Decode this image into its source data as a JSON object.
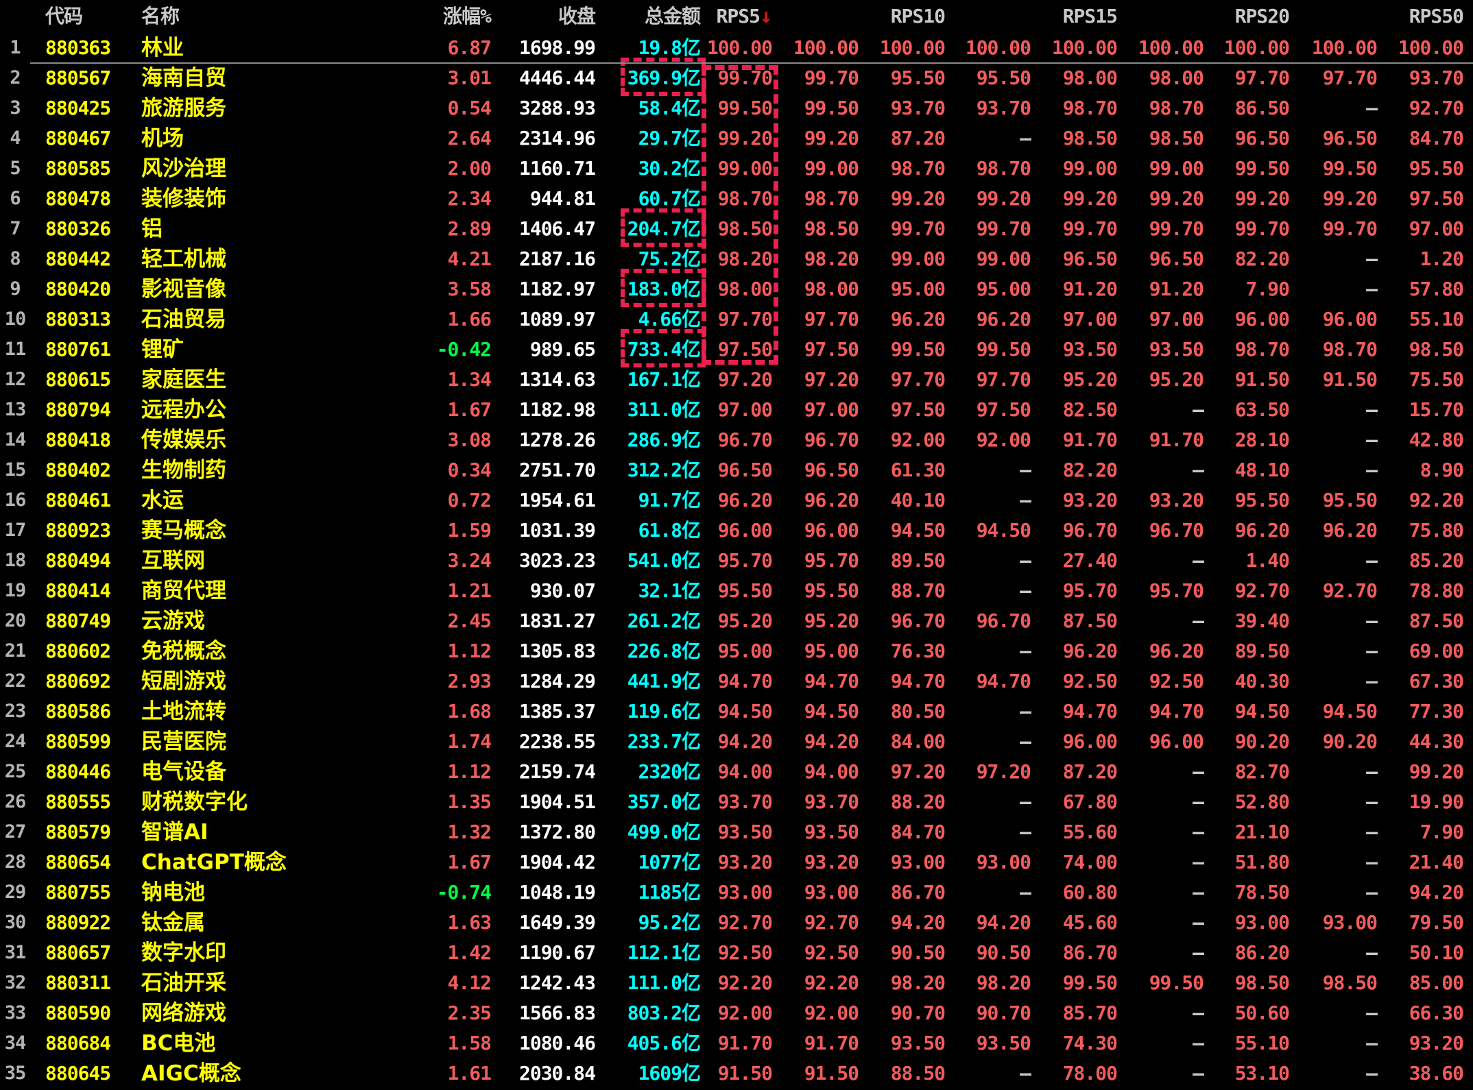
{
  "table": {
    "columns": {
      "rownum": "",
      "code": "代码",
      "name": "名称",
      "change_pct": "涨幅%",
      "close": "收盘",
      "amount": "总金额",
      "rps5": "RPS5",
      "rps10": "RPS10",
      "rps15": "RPS15",
      "rps20": "RPS20",
      "rps50": "RPS50"
    },
    "sort": {
      "column": "RPS5",
      "direction": "desc",
      "arrow": "↓"
    },
    "colors": {
      "up": "#f35c5c",
      "down": "#00ff40",
      "code_name": "#ffff00",
      "close": "#ffffff",
      "amount": "#00ffff",
      "header": "#c8c8c8",
      "highlight_box": "#ec2050",
      "background": "#000000"
    },
    "annotations": {
      "amount_boxed_rows": [
        2,
        7,
        9,
        11
      ],
      "rps5_column_box_rows": "2-11"
    },
    "rows": [
      {
        "no": 1,
        "code": "880363",
        "name": "林业",
        "chg": "6.87",
        "close": "1698.99",
        "amt": "19.8亿",
        "boxed": false,
        "rps": [
          "100.00",
          "100.00",
          "100.00",
          "100.00",
          "100.00",
          "100.00",
          "100.00",
          "100.00",
          "100.00"
        ]
      },
      {
        "no": 2,
        "code": "880567",
        "name": "海南自贸",
        "chg": "3.01",
        "close": "4446.44",
        "amt": "369.9亿",
        "boxed": true,
        "rps": [
          "99.70",
          "99.70",
          "95.50",
          "95.50",
          "98.00",
          "98.00",
          "97.70",
          "97.70",
          "93.70"
        ]
      },
      {
        "no": 3,
        "code": "880425",
        "name": "旅游服务",
        "chg": "0.54",
        "close": "3288.93",
        "amt": "58.4亿",
        "boxed": false,
        "rps": [
          "99.50",
          "99.50",
          "93.70",
          "93.70",
          "98.70",
          "98.70",
          "86.50",
          "–",
          "92.70"
        ]
      },
      {
        "no": 4,
        "code": "880467",
        "name": "机场",
        "chg": "2.64",
        "close": "2314.96",
        "amt": "29.7亿",
        "boxed": false,
        "rps": [
          "99.20",
          "99.20",
          "87.20",
          "–",
          "98.50",
          "98.50",
          "96.50",
          "96.50",
          "84.70"
        ]
      },
      {
        "no": 5,
        "code": "880585",
        "name": "风沙治理",
        "chg": "2.00",
        "close": "1160.71",
        "amt": "30.2亿",
        "boxed": false,
        "rps": [
          "99.00",
          "99.00",
          "98.70",
          "98.70",
          "99.00",
          "99.00",
          "99.50",
          "99.50",
          "95.50"
        ]
      },
      {
        "no": 6,
        "code": "880478",
        "name": "装修装饰",
        "chg": "2.34",
        "close": "944.81",
        "amt": "60.7亿",
        "boxed": false,
        "rps": [
          "98.70",
          "98.70",
          "99.20",
          "99.20",
          "99.20",
          "99.20",
          "99.20",
          "99.20",
          "97.50"
        ]
      },
      {
        "no": 7,
        "code": "880326",
        "name": "铝",
        "chg": "2.89",
        "close": "1406.47",
        "amt": "204.7亿",
        "boxed": true,
        "rps": [
          "98.50",
          "98.50",
          "99.70",
          "99.70",
          "99.70",
          "99.70",
          "99.70",
          "99.70",
          "97.00"
        ]
      },
      {
        "no": 8,
        "code": "880442",
        "name": "轻工机械",
        "chg": "4.21",
        "close": "2187.16",
        "amt": "75.2亿",
        "boxed": false,
        "rps": [
          "98.20",
          "98.20",
          "99.00",
          "99.00",
          "96.50",
          "96.50",
          "82.20",
          "–",
          "1.20"
        ]
      },
      {
        "no": 9,
        "code": "880420",
        "name": "影视音像",
        "chg": "3.58",
        "close": "1182.97",
        "amt": "183.0亿",
        "boxed": true,
        "rps": [
          "98.00",
          "98.00",
          "95.00",
          "95.00",
          "91.20",
          "91.20",
          "7.90",
          "–",
          "57.80"
        ]
      },
      {
        "no": 10,
        "code": "880313",
        "name": "石油贸易",
        "chg": "1.66",
        "close": "1089.97",
        "amt": "4.66亿",
        "boxed": false,
        "rps": [
          "97.70",
          "97.70",
          "96.20",
          "96.20",
          "97.00",
          "97.00",
          "96.00",
          "96.00",
          "55.10"
        ]
      },
      {
        "no": 11,
        "code": "880761",
        "name": "锂矿",
        "chg": "-0.42",
        "close": "989.65",
        "amt": "733.4亿",
        "boxed": true,
        "rps": [
          "97.50",
          "97.50",
          "99.50",
          "99.50",
          "93.50",
          "93.50",
          "98.70",
          "98.70",
          "98.50"
        ]
      },
      {
        "no": 12,
        "code": "880615",
        "name": "家庭医生",
        "chg": "1.34",
        "close": "1314.63",
        "amt": "167.1亿",
        "boxed": false,
        "rps": [
          "97.20",
          "97.20",
          "97.70",
          "97.70",
          "95.20",
          "95.20",
          "91.50",
          "91.50",
          "75.50"
        ]
      },
      {
        "no": 13,
        "code": "880794",
        "name": "远程办公",
        "chg": "1.67",
        "close": "1182.98",
        "amt": "311.0亿",
        "boxed": false,
        "rps": [
          "97.00",
          "97.00",
          "97.50",
          "97.50",
          "82.50",
          "–",
          "63.50",
          "–",
          "15.70"
        ]
      },
      {
        "no": 14,
        "code": "880418",
        "name": "传媒娱乐",
        "chg": "3.08",
        "close": "1278.26",
        "amt": "286.9亿",
        "boxed": false,
        "rps": [
          "96.70",
          "96.70",
          "92.00",
          "92.00",
          "91.70",
          "91.70",
          "28.10",
          "–",
          "42.80"
        ]
      },
      {
        "no": 15,
        "code": "880402",
        "name": "生物制药",
        "chg": "0.34",
        "close": "2751.70",
        "amt": "312.2亿",
        "boxed": false,
        "rps": [
          "96.50",
          "96.50",
          "61.30",
          "–",
          "82.20",
          "–",
          "48.10",
          "–",
          "8.90"
        ]
      },
      {
        "no": 16,
        "code": "880461",
        "name": "水运",
        "chg": "0.72",
        "close": "1954.61",
        "amt": "91.7亿",
        "boxed": false,
        "rps": [
          "96.20",
          "96.20",
          "40.10",
          "–",
          "93.20",
          "93.20",
          "95.50",
          "95.50",
          "92.20"
        ]
      },
      {
        "no": 17,
        "code": "880923",
        "name": "赛马概念",
        "chg": "1.59",
        "close": "1031.39",
        "amt": "61.8亿",
        "boxed": false,
        "rps": [
          "96.00",
          "96.00",
          "94.50",
          "94.50",
          "96.70",
          "96.70",
          "96.20",
          "96.20",
          "75.80"
        ]
      },
      {
        "no": 18,
        "code": "880494",
        "name": "互联网",
        "chg": "3.24",
        "close": "3023.23",
        "amt": "541.0亿",
        "boxed": false,
        "rps": [
          "95.70",
          "95.70",
          "89.50",
          "–",
          "27.40",
          "–",
          "1.40",
          "–",
          "85.20"
        ]
      },
      {
        "no": 19,
        "code": "880414",
        "name": "商贸代理",
        "chg": "1.21",
        "close": "930.07",
        "amt": "32.1亿",
        "boxed": false,
        "rps": [
          "95.50",
          "95.50",
          "88.70",
          "–",
          "95.70",
          "95.70",
          "92.70",
          "92.70",
          "78.80"
        ]
      },
      {
        "no": 20,
        "code": "880749",
        "name": "云游戏",
        "chg": "2.45",
        "close": "1831.27",
        "amt": "261.2亿",
        "boxed": false,
        "rps": [
          "95.20",
          "95.20",
          "96.70",
          "96.70",
          "87.50",
          "–",
          "39.40",
          "–",
          "87.50"
        ]
      },
      {
        "no": 21,
        "code": "880602",
        "name": "免税概念",
        "chg": "1.12",
        "close": "1305.83",
        "amt": "226.8亿",
        "boxed": false,
        "rps": [
          "95.00",
          "95.00",
          "76.30",
          "–",
          "96.20",
          "96.20",
          "89.50",
          "–",
          "69.00"
        ]
      },
      {
        "no": 22,
        "code": "880692",
        "name": "短剧游戏",
        "chg": "2.93",
        "close": "1284.29",
        "amt": "441.9亿",
        "boxed": false,
        "rps": [
          "94.70",
          "94.70",
          "94.70",
          "94.70",
          "92.50",
          "92.50",
          "40.30",
          "–",
          "67.30"
        ]
      },
      {
        "no": 23,
        "code": "880586",
        "name": "土地流转",
        "chg": "1.68",
        "close": "1385.37",
        "amt": "119.6亿",
        "boxed": false,
        "rps": [
          "94.50",
          "94.50",
          "80.50",
          "–",
          "94.70",
          "94.70",
          "94.50",
          "94.50",
          "77.30"
        ]
      },
      {
        "no": 24,
        "code": "880599",
        "name": "民营医院",
        "chg": "1.74",
        "close": "2238.55",
        "amt": "233.7亿",
        "boxed": false,
        "rps": [
          "94.20",
          "94.20",
          "84.00",
          "–",
          "96.00",
          "96.00",
          "90.20",
          "90.20",
          "44.30"
        ]
      },
      {
        "no": 25,
        "code": "880446",
        "name": "电气设备",
        "chg": "1.12",
        "close": "2159.74",
        "amt": "2320亿",
        "boxed": false,
        "rps": [
          "94.00",
          "94.00",
          "97.20",
          "97.20",
          "87.20",
          "–",
          "82.70",
          "–",
          "99.20"
        ]
      },
      {
        "no": 26,
        "code": "880555",
        "name": "财税数字化",
        "chg": "1.35",
        "close": "1904.51",
        "amt": "357.0亿",
        "boxed": false,
        "rps": [
          "93.70",
          "93.70",
          "88.20",
          "–",
          "67.80",
          "–",
          "52.80",
          "–",
          "19.90"
        ]
      },
      {
        "no": 27,
        "code": "880579",
        "name": "智谱AI",
        "chg": "1.32",
        "close": "1372.80",
        "amt": "499.0亿",
        "boxed": false,
        "rps": [
          "93.50",
          "93.50",
          "84.70",
          "–",
          "55.60",
          "–",
          "21.10",
          "–",
          "7.90"
        ]
      },
      {
        "no": 28,
        "code": "880654",
        "name": "ChatGPT概念",
        "chg": "1.67",
        "close": "1904.42",
        "amt": "1077亿",
        "boxed": false,
        "rps": [
          "93.20",
          "93.20",
          "93.00",
          "93.00",
          "74.00",
          "–",
          "51.80",
          "–",
          "21.40"
        ]
      },
      {
        "no": 29,
        "code": "880755",
        "name": "钠电池",
        "chg": "-0.74",
        "close": "1048.19",
        "amt": "1185亿",
        "boxed": false,
        "rps": [
          "93.00",
          "93.00",
          "86.70",
          "–",
          "60.80",
          "–",
          "78.50",
          "–",
          "94.20"
        ]
      },
      {
        "no": 30,
        "code": "880922",
        "name": "钛金属",
        "chg": "1.63",
        "close": "1649.39",
        "amt": "95.2亿",
        "boxed": false,
        "rps": [
          "92.70",
          "92.70",
          "94.20",
          "94.20",
          "45.60",
          "–",
          "93.00",
          "93.00",
          "79.50"
        ]
      },
      {
        "no": 31,
        "code": "880657",
        "name": "数字水印",
        "chg": "1.42",
        "close": "1190.67",
        "amt": "112.1亿",
        "boxed": false,
        "rps": [
          "92.50",
          "92.50",
          "90.50",
          "90.50",
          "86.70",
          "–",
          "86.20",
          "–",
          "50.10"
        ]
      },
      {
        "no": 32,
        "code": "880311",
        "name": "石油开采",
        "chg": "4.12",
        "close": "1242.43",
        "amt": "111.0亿",
        "boxed": false,
        "rps": [
          "92.20",
          "92.20",
          "98.20",
          "98.20",
          "99.50",
          "99.50",
          "98.50",
          "98.50",
          "85.00"
        ]
      },
      {
        "no": 33,
        "code": "880590",
        "name": "网络游戏",
        "chg": "2.35",
        "close": "1566.83",
        "amt": "803.2亿",
        "boxed": false,
        "rps": [
          "92.00",
          "92.00",
          "90.70",
          "90.70",
          "85.70",
          "–",
          "50.60",
          "–",
          "66.30"
        ]
      },
      {
        "no": 34,
        "code": "880684",
        "name": "BC电池",
        "chg": "1.58",
        "close": "1080.46",
        "amt": "405.6亿",
        "boxed": false,
        "rps": [
          "91.70",
          "91.70",
          "93.50",
          "93.50",
          "74.30",
          "–",
          "55.10",
          "–",
          "93.20"
        ]
      },
      {
        "no": 35,
        "code": "880645",
        "name": "AIGC概念",
        "chg": "1.61",
        "close": "2030.84",
        "amt": "1609亿",
        "boxed": false,
        "rps": [
          "91.50",
          "91.50",
          "88.50",
          "–",
          "78.00",
          "–",
          "53.10",
          "–",
          "38.60"
        ]
      }
    ]
  }
}
